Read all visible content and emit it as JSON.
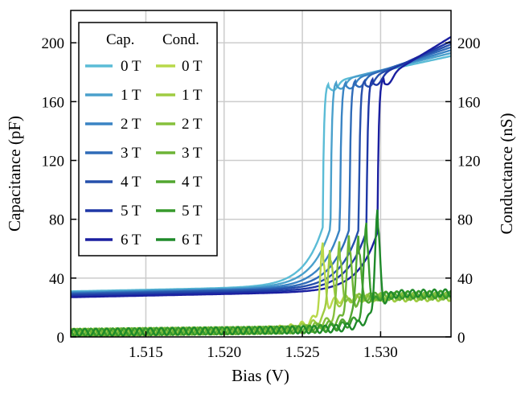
{
  "chart_data": {
    "type": "line",
    "xlabel": "Bias (V)",
    "ylabel_left": "Capacitance (pF)",
    "ylabel_right": "Conductance (nS)",
    "xlim": [
      1.5102,
      1.5345
    ],
    "ylim_left": [
      0,
      222
    ],
    "ylim_right": [
      0,
      222
    ],
    "x_ticks": [
      1.515,
      1.52,
      1.525,
      1.53
    ],
    "x_tick_labels": [
      "1.515",
      "1.520",
      "1.525",
      "1.530"
    ],
    "y_ticks": [
      0,
      40,
      80,
      120,
      160,
      200
    ],
    "y_tick_labels": [
      "0",
      "40",
      "80",
      "120",
      "160",
      "200"
    ],
    "grid": true,
    "legend": {
      "placement": "top-left",
      "cap_header": "Cap.",
      "cond_header": "Cond.",
      "labels": [
        "0 T",
        "1 T",
        "2 T",
        "3 T",
        "4 T",
        "5 T",
        "6 T"
      ]
    },
    "series": [
      {
        "group": "capacitance",
        "label": "0 T",
        "color": "#5bbcd6",
        "x_step": 1.5263,
        "y_low": 31,
        "y_top": 173,
        "y_end": 191
      },
      {
        "group": "capacitance",
        "label": "1 T",
        "color": "#4aa0cc",
        "x_step": 1.5268,
        "y_low": 30.5,
        "y_top": 174,
        "y_end": 193
      },
      {
        "group": "capacitance",
        "label": "2 T",
        "color": "#3a84c4",
        "x_step": 1.5274,
        "y_low": 30,
        "y_top": 174,
        "y_end": 195
      },
      {
        "group": "capacitance",
        "label": "3 T",
        "color": "#2f6bb8",
        "x_step": 1.528,
        "y_low": 29.5,
        "y_top": 175,
        "y_end": 197
      },
      {
        "group": "capacitance",
        "label": "4 T",
        "color": "#2650ac",
        "x_step": 1.5286,
        "y_low": 29,
        "y_top": 175,
        "y_end": 199
      },
      {
        "group": "capacitance",
        "label": "5 T",
        "color": "#1e37a6",
        "x_step": 1.5291,
        "y_low": 28,
        "y_top": 176,
        "y_end": 201
      },
      {
        "group": "capacitance",
        "label": "6 T",
        "color": "#1a1fa0",
        "x_step": 1.5298,
        "y_low": 27,
        "y_top": 176,
        "y_end": 204
      },
      {
        "group": "conductance",
        "label": "0 T",
        "color": "#b8d84a",
        "x_peak": 1.5263,
        "y_peak": 43,
        "y_plateau": 25
      },
      {
        "group": "conductance",
        "label": "1 T",
        "color": "#9fcc42",
        "x_peak": 1.5268,
        "y_peak": 45,
        "y_plateau": 25
      },
      {
        "group": "conductance",
        "label": "2 T",
        "color": "#86c03c",
        "x_peak": 1.5274,
        "y_peak": 47,
        "y_plateau": 26
      },
      {
        "group": "conductance",
        "label": "3 T",
        "color": "#6db436",
        "x_peak": 1.528,
        "y_peak": 50,
        "y_plateau": 26
      },
      {
        "group": "conductance",
        "label": "4 T",
        "color": "#52a630",
        "x_peak": 1.5286,
        "y_peak": 53,
        "y_plateau": 27
      },
      {
        "group": "conductance",
        "label": "5 T",
        "color": "#379a2c",
        "x_peak": 1.5291,
        "y_peak": 58,
        "y_plateau": 27
      },
      {
        "group": "conductance",
        "label": "6 T",
        "color": "#1f8a2a",
        "x_peak": 1.5298,
        "y_peak": 67,
        "y_plateau": 28
      }
    ]
  }
}
